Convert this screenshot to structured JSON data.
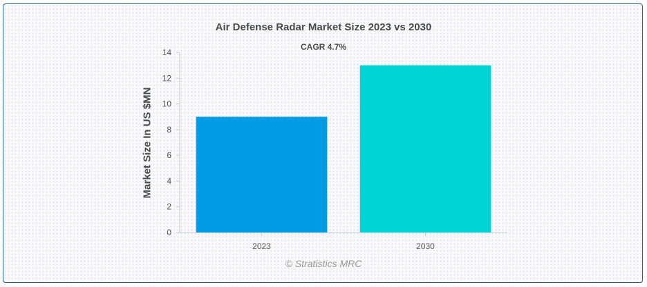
{
  "chart_data": {
    "type": "bar",
    "title": "Air Defense Radar Market Size 2023 vs 2030",
    "subtitle": "CAGR 4.7%",
    "xlabel": "",
    "ylabel": "Market Size In US $MN",
    "categories": [
      "2023",
      "2030"
    ],
    "values": [
      9,
      13
    ],
    "colors": [
      "#039be5",
      "#00d4d4"
    ],
    "ylim": [
      0,
      14
    ],
    "yticks": [
      0,
      2,
      4,
      6,
      8,
      10,
      12,
      14
    ],
    "grid": false,
    "legend": "none"
  },
  "watermark": "© Stratistics MRC",
  "colors": {
    "border": "#2f5f86",
    "text": "#4a4a4a",
    "axis": "#cccccc"
  }
}
